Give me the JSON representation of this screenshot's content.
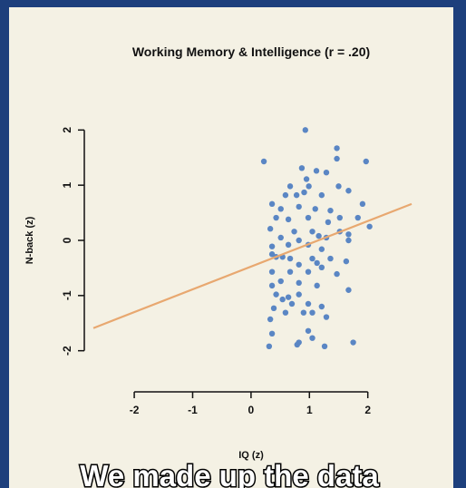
{
  "chart_data": {
    "type": "scatter",
    "title": "Working Memory & Intelligence (r = .20)",
    "x_label": "IQ (z)",
    "y_label": "N-back (z)",
    "caption": "We made up the data",
    "color": "#5a86c4",
    "xlim": [
      -2.7,
      2.75
    ],
    "ylim": [
      -2.4,
      2.4
    ],
    "xticks": [
      -2,
      -1,
      0,
      1,
      2
    ],
    "yticks": [
      -2,
      -1,
      0,
      1,
      2
    ],
    "x": [
      0.93,
      1.47,
      1.47,
      0.22,
      1.97,
      0.87,
      1.12,
      1.29,
      0.95,
      0.67,
      0.99,
      0.91,
      1.5,
      1.67,
      0.59,
      0.78,
      1.21,
      1.91,
      0.36,
      0.51,
      0.82,
      1.1,
      1.36,
      0.43,
      0.64,
      0.98,
      1.32,
      1.52,
      1.83,
      2.03,
      0.33,
      0.74,
      1.05,
      1.16,
      1.52,
      1.67,
      0.51,
      0.82,
      1.29,
      1.67,
      0.36,
      0.64,
      0.98,
      1.21,
      0.43,
      0.67,
      0.36,
      0.54,
      1.05,
      1.36,
      1.63,
      0.82,
      1.21,
      1.13,
      0.36,
      0.67,
      0.98,
      1.47,
      0.51,
      0.82,
      1.13,
      0.36,
      1.67,
      0.43,
      0.64,
      0.82,
      0.54,
      0.7,
      0.98,
      1.21,
      0.39,
      0.59,
      0.9,
      1.29,
      0.33,
      1.05,
      0.36,
      0.98,
      1.05,
      0.82,
      0.79,
      0.31,
      1.26,
      1.75
    ],
    "y": [
      2.0,
      1.67,
      1.48,
      1.43,
      1.43,
      1.31,
      1.26,
      1.23,
      1.11,
      0.98,
      0.98,
      0.87,
      0.98,
      0.9,
      0.82,
      0.82,
      0.82,
      0.66,
      0.66,
      0.57,
      0.61,
      0.57,
      0.54,
      0.41,
      0.38,
      0.41,
      0.33,
      0.41,
      0.41,
      0.25,
      0.21,
      0.16,
      0.16,
      0.08,
      0.16,
      0.11,
      0.05,
      0.0,
      0.05,
      0.0,
      -0.11,
      -0.08,
      -0.08,
      -0.16,
      -0.3,
      -0.33,
      -0.25,
      -0.3,
      -0.33,
      -0.33,
      -0.38,
      -0.44,
      -0.49,
      -0.41,
      -0.57,
      -0.57,
      -0.57,
      -0.61,
      -0.74,
      -0.77,
      -0.82,
      -0.82,
      -0.9,
      -0.98,
      -1.03,
      -0.98,
      -1.07,
      -1.15,
      -1.15,
      -1.2,
      -1.23,
      -1.31,
      -1.31,
      -1.39,
      -1.43,
      -1.31,
      -1.69,
      -1.64,
      -1.77,
      -1.85,
      -1.89,
      -1.92,
      -1.92,
      -1.85
    ],
    "trend_line": {
      "color": "#e8a870",
      "x": [
        -2.7,
        2.75
      ],
      "y": [
        -1.59,
        0.66
      ]
    }
  }
}
